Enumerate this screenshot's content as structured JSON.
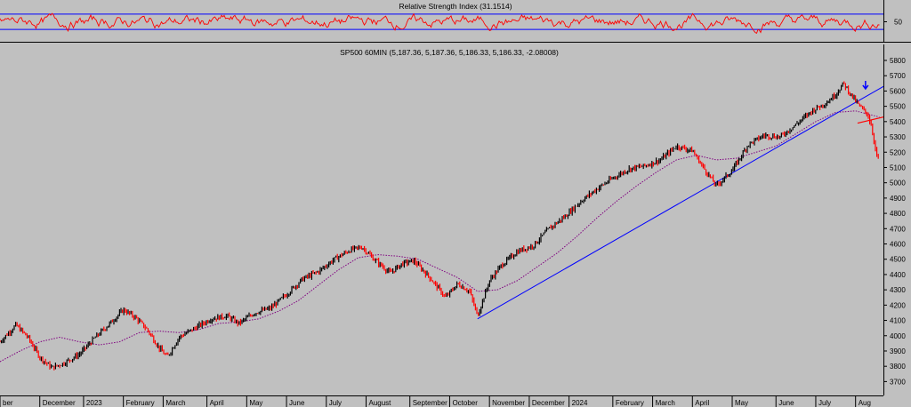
{
  "rsi_panel": {
    "title": "Relative Strength Index (31.1514)",
    "y_ticks": [
      50
    ],
    "upper_band": 70,
    "lower_band": 30,
    "line_color": "#ff0000",
    "band_color": "#0000ff"
  },
  "price_panel": {
    "title": "SP500 60MIN (5,187.36, 5,187.36, 5,186.33, 5,186.33, -2.08008)"
  },
  "chart_data": {
    "type": "ohlc",
    "ylim": [
      3650,
      5800
    ],
    "y_ticks": [
      3700,
      3800,
      3900,
      4000,
      4100,
      4200,
      4300,
      4400,
      4500,
      4600,
      4700,
      4800,
      4900,
      5000,
      5100,
      5200,
      5300,
      5400,
      5500,
      5600,
      5700,
      5800
    ],
    "x_labels": [
      {
        "x": 0.0,
        "label": "ber"
      },
      {
        "x": 1.0,
        "label": "December"
      },
      {
        "x": 2.1,
        "label": "2023"
      },
      {
        "x": 3.1,
        "label": "February"
      },
      {
        "x": 4.1,
        "label": "March"
      },
      {
        "x": 5.2,
        "label": "April"
      },
      {
        "x": 6.2,
        "label": "May"
      },
      {
        "x": 7.2,
        "label": "June"
      },
      {
        "x": 8.2,
        "label": "July"
      },
      {
        "x": 9.2,
        "label": "August"
      },
      {
        "x": 10.3,
        "label": "September"
      },
      {
        "x": 11.3,
        "label": "October"
      },
      {
        "x": 12.3,
        "label": "November"
      },
      {
        "x": 13.3,
        "label": "December"
      },
      {
        "x": 14.3,
        "label": "2024"
      },
      {
        "x": 15.4,
        "label": "February"
      },
      {
        "x": 16.4,
        "label": "March"
      },
      {
        "x": 17.4,
        "label": "April"
      },
      {
        "x": 18.4,
        "label": "May"
      },
      {
        "x": 19.5,
        "label": "June"
      },
      {
        "x": 20.5,
        "label": "July"
      },
      {
        "x": 21.5,
        "label": "Aug"
      }
    ],
    "x_range": [
      0,
      22.2
    ],
    "price_path": [
      [
        0,
        3960
      ],
      [
        0.4,
        4070
      ],
      [
        0.7,
        3990
      ],
      [
        1.0,
        3860
      ],
      [
        1.3,
        3790
      ],
      [
        1.6,
        3820
      ],
      [
        2.0,
        3880
      ],
      [
        2.4,
        3990
      ],
      [
        2.8,
        4090
      ],
      [
        3.1,
        4170
      ],
      [
        3.4,
        4120
      ],
      [
        3.7,
        4040
      ],
      [
        4.0,
        3920
      ],
      [
        4.2,
        3860
      ],
      [
        4.5,
        3990
      ],
      [
        4.9,
        4050
      ],
      [
        5.3,
        4110
      ],
      [
        5.7,
        4130
      ],
      [
        6.0,
        4080
      ],
      [
        6.4,
        4150
      ],
      [
        6.8,
        4180
      ],
      [
        7.2,
        4270
      ],
      [
        7.6,
        4370
      ],
      [
        8.0,
        4420
      ],
      [
        8.4,
        4500
      ],
      [
        8.8,
        4560
      ],
      [
        9.1,
        4580
      ],
      [
        9.4,
        4500
      ],
      [
        9.8,
        4410
      ],
      [
        10.1,
        4470
      ],
      [
        10.4,
        4490
      ],
      [
        10.8,
        4380
      ],
      [
        11.2,
        4250
      ],
      [
        11.5,
        4340
      ],
      [
        11.8,
        4290
      ],
      [
        12.0,
        4130
      ],
      [
        12.3,
        4360
      ],
      [
        12.6,
        4460
      ],
      [
        13.0,
        4550
      ],
      [
        13.4,
        4590
      ],
      [
        13.8,
        4700
      ],
      [
        14.2,
        4780
      ],
      [
        14.6,
        4880
      ],
      [
        15.0,
        4960
      ],
      [
        15.4,
        5030
      ],
      [
        15.8,
        5090
      ],
      [
        16.2,
        5110
      ],
      [
        16.6,
        5150
      ],
      [
        17.0,
        5240
      ],
      [
        17.4,
        5210
      ],
      [
        17.7,
        5090
      ],
      [
        18.0,
        4980
      ],
      [
        18.4,
        5080
      ],
      [
        18.8,
        5250
      ],
      [
        19.2,
        5310
      ],
      [
        19.6,
        5300
      ],
      [
        20.0,
        5380
      ],
      [
        20.4,
        5470
      ],
      [
        20.8,
        5530
      ],
      [
        21.0,
        5580
      ],
      [
        21.2,
        5650
      ],
      [
        21.4,
        5570
      ],
      [
        21.6,
        5500
      ],
      [
        21.8,
        5450
      ],
      [
        21.9,
        5370
      ],
      [
        22.0,
        5220
      ],
      [
        22.05,
        5150
      ],
      [
        22.1,
        5187
      ]
    ],
    "ma_path": [
      [
        0,
        3830
      ],
      [
        0.5,
        3900
      ],
      [
        1.0,
        3960
      ],
      [
        1.5,
        3990
      ],
      [
        2.0,
        3960
      ],
      [
        2.5,
        3940
      ],
      [
        3.0,
        3960
      ],
      [
        3.5,
        4020
      ],
      [
        4.0,
        4030
      ],
      [
        4.5,
        4020
      ],
      [
        5.0,
        4040
      ],
      [
        5.5,
        4080
      ],
      [
        6.0,
        4090
      ],
      [
        6.5,
        4110
      ],
      [
        7.0,
        4160
      ],
      [
        7.5,
        4230
      ],
      [
        8.0,
        4330
      ],
      [
        8.5,
        4430
      ],
      [
        9.0,
        4510
      ],
      [
        9.5,
        4530
      ],
      [
        10.0,
        4520
      ],
      [
        10.5,
        4500
      ],
      [
        11.0,
        4440
      ],
      [
        11.5,
        4380
      ],
      [
        12.0,
        4290
      ],
      [
        12.5,
        4300
      ],
      [
        13.0,
        4360
      ],
      [
        13.5,
        4450
      ],
      [
        14.0,
        4540
      ],
      [
        14.5,
        4650
      ],
      [
        15.0,
        4770
      ],
      [
        15.5,
        4880
      ],
      [
        16.0,
        4980
      ],
      [
        16.5,
        5070
      ],
      [
        17.0,
        5150
      ],
      [
        17.5,
        5180
      ],
      [
        18.0,
        5150
      ],
      [
        18.5,
        5160
      ],
      [
        19.0,
        5200
      ],
      [
        19.5,
        5240
      ],
      [
        20.0,
        5320
      ],
      [
        20.5,
        5400
      ],
      [
        21.0,
        5460
      ],
      [
        21.5,
        5470
      ],
      [
        22.1,
        5430
      ]
    ],
    "trendline": {
      "from": [
        12.0,
        4110
      ],
      "to": [
        22.2,
        5630
      ],
      "color": "#0000ff"
    },
    "neckline": {
      "from": [
        21.55,
        5390
      ],
      "to": [
        22.2,
        5430
      ],
      "color": "#ff0000"
    },
    "arrow": {
      "x": 21.75,
      "y": 5620,
      "color": "#0000ff"
    }
  }
}
